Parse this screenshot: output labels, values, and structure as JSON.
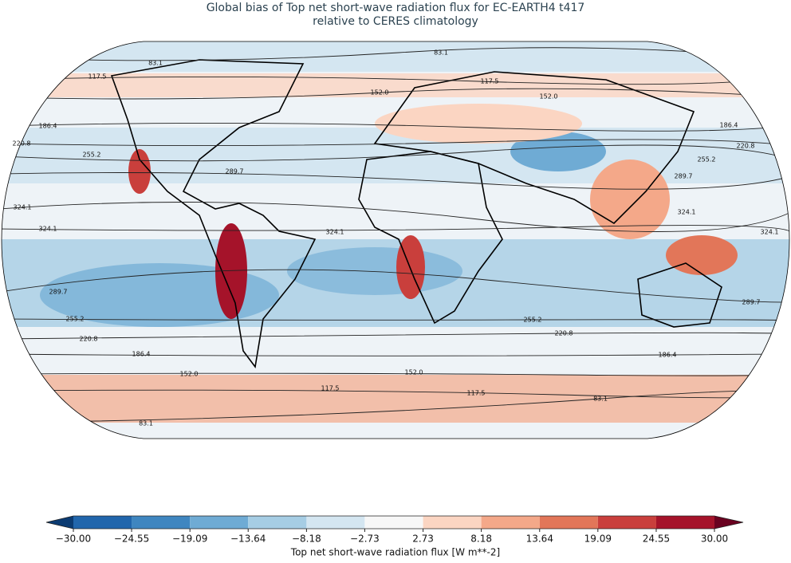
{
  "title": [
    "Global bias of Top net short-wave radiation flux for EC-EARTH4 t417",
    "relative to CERES climatology"
  ],
  "map": {
    "contour_labels": [
      "83.1",
      "83.1",
      "83.1",
      "83.1",
      "117.5",
      "117.5",
      "117.5",
      "117.5",
      "152.0",
      "152.0",
      "152.0",
      "152.0",
      "186.4",
      "186.4",
      "186.4",
      "186.4",
      "220.8",
      "220.8",
      "220.8",
      "220.8",
      "255.2",
      "255.2",
      "255.2",
      "255.2",
      "289.7",
      "289.7",
      "289.7",
      "289.7",
      "324.1",
      "324.1",
      "324.1",
      "324.1",
      "324.1"
    ]
  },
  "colorbar": {
    "label": "Top net short-wave radiation flux [W m**-2]",
    "ticks": [
      {
        "value": -30,
        "label": "−30.00"
      },
      {
        "value": -24.55,
        "label": "−24.55"
      },
      {
        "value": -19.09,
        "label": "−19.09"
      },
      {
        "value": -13.64,
        "label": "−13.64"
      },
      {
        "value": -8.18,
        "label": "−8.18"
      },
      {
        "value": -2.73,
        "label": "−2.73"
      },
      {
        "value": 2.73,
        "label": "2.73"
      },
      {
        "value": 8.18,
        "label": "8.18"
      },
      {
        "value": 13.64,
        "label": "13.64"
      },
      {
        "value": 19.09,
        "label": "19.09"
      },
      {
        "value": 24.55,
        "label": "24.55"
      },
      {
        "value": 30,
        "label": "30.00"
      }
    ],
    "colors": [
      "#2166ac",
      "#3f86c0",
      "#6fabd4",
      "#a6cde4",
      "#d4e6f1",
      "#f7f7f7",
      "#fbd5c2",
      "#f4a889",
      "#e27659",
      "#c93f3c",
      "#a5132a"
    ],
    "under": "#0b3b72",
    "over": "#6a0220"
  }
}
